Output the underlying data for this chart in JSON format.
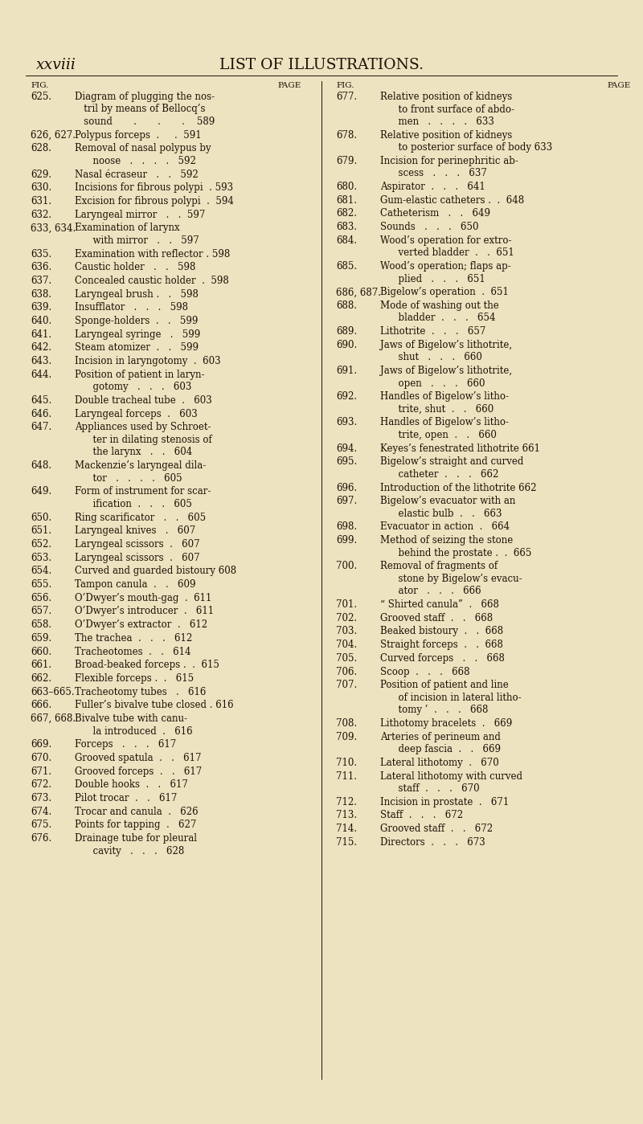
{
  "bg_color": "#ede3c0",
  "text_color": "#1a1208",
  "header_left": "xxviii",
  "header_center": "LIST OF ILLUSTRATIONS.",
  "fig_w": 8.0,
  "fig_h": 13.99,
  "dpi": 100,
  "left_entries": [
    {
      "num": "625.",
      "lines": [
        "Diagram of plugging the nos-",
        "   tril by means of Bellocq’s",
        "   sound       .       .       .    589"
      ]
    },
    {
      "num": "626, 627.",
      "lines": [
        "Polypus forceps  .     .  591"
      ]
    },
    {
      "num": "628.",
      "lines": [
        "Removal of nasal polypus by",
        "      noose   .   .   .   .   592"
      ]
    },
    {
      "num": "629.",
      "lines": [
        "Nasal écraseur   .   .   592"
      ]
    },
    {
      "num": "630.",
      "lines": [
        "Incisions for fibrous polypi  . 593"
      ]
    },
    {
      "num": "631.",
      "lines": [
        "Excision for fibrous polypi  .  594"
      ]
    },
    {
      "num": "632.",
      "lines": [
        "Laryngeal mirror   .   .  597"
      ]
    },
    {
      "num": "633, 634.",
      "lines": [
        "Examination of larynx",
        "      with mirror   .   .   597"
      ]
    },
    {
      "num": "635.",
      "lines": [
        "Examination with reflector . 598"
      ]
    },
    {
      "num": "636.",
      "lines": [
        "Caustic holder   .   .   598"
      ]
    },
    {
      "num": "637.",
      "lines": [
        "Concealed caustic holder  .  598"
      ]
    },
    {
      "num": "638.",
      "lines": [
        "Laryngeal brush .   .   598"
      ]
    },
    {
      "num": "639.",
      "lines": [
        "Insufflator   .   .   .   598"
      ]
    },
    {
      "num": "640.",
      "lines": [
        "Sponge-holders  .   .   599"
      ]
    },
    {
      "num": "641.",
      "lines": [
        "Laryngeal syringe   .   599"
      ]
    },
    {
      "num": "642.",
      "lines": [
        "Steam atomizer  .   .   599"
      ]
    },
    {
      "num": "643.",
      "lines": [
        "Incision in laryngotomy  .  603"
      ]
    },
    {
      "num": "644.",
      "lines": [
        "Position of patient in laryn-",
        "      gotomy   .   .   .   603"
      ]
    },
    {
      "num": "645.",
      "lines": [
        "Double tracheal tube  .   603"
      ]
    },
    {
      "num": "646.",
      "lines": [
        "Laryngeal forceps  .   603"
      ]
    },
    {
      "num": "647.",
      "lines": [
        "Appliances used by Schroet-",
        "      ter in dilating stenosis of",
        "      the larynx   .   .   604"
      ]
    },
    {
      "num": "648.",
      "lines": [
        "Mackenzie’s laryngeal dila-",
        "      tor   .   .   .   .   605"
      ]
    },
    {
      "num": "649.",
      "lines": [
        "Form of instrument for scar-",
        "      ification  .   .   .   605"
      ]
    },
    {
      "num": "650.",
      "lines": [
        "Ring scarificator   .   .   605"
      ]
    },
    {
      "num": "651.",
      "lines": [
        "Laryngeal knives   .   607"
      ]
    },
    {
      "num": "652.",
      "lines": [
        "Laryngeal scissors  .   607"
      ]
    },
    {
      "num": "653.",
      "lines": [
        "Laryngeal scissors  .   607"
      ]
    },
    {
      "num": "654.",
      "lines": [
        "Curved and guarded bistoury 608"
      ]
    },
    {
      "num": "655.",
      "lines": [
        "Tampon canula  .   .   609"
      ]
    },
    {
      "num": "656.",
      "lines": [
        "O’Dwyer’s mouth-gag  .  611"
      ]
    },
    {
      "num": "657.",
      "lines": [
        "O’Dwyer’s introducer  .   611"
      ]
    },
    {
      "num": "658.",
      "lines": [
        "O’Dwyer’s extractor  .   612"
      ]
    },
    {
      "num": "659.",
      "lines": [
        "The trachea  .   .   .   612"
      ]
    },
    {
      "num": "660.",
      "lines": [
        "Tracheotomes  .   .   614"
      ]
    },
    {
      "num": "661.",
      "lines": [
        "Broad-beaked forceps .  .  615"
      ]
    },
    {
      "num": "662.",
      "lines": [
        "Flexible forceps .  .   615"
      ]
    },
    {
      "num": "663–665.",
      "lines": [
        "Tracheotomy tubes   .   616"
      ]
    },
    {
      "num": "666.",
      "lines": [
        "Fuller’s bivalve tube closed . 616"
      ]
    },
    {
      "num": "667, 668.",
      "lines": [
        "Bivalve tube with canu-",
        "      la introduced  .   616"
      ]
    },
    {
      "num": "669.",
      "lines": [
        "Forceps   .   .   .   617"
      ]
    },
    {
      "num": "670.",
      "lines": [
        "Grooved spatula  .   .   617"
      ]
    },
    {
      "num": "671.",
      "lines": [
        "Grooved forceps  .   .   617"
      ]
    },
    {
      "num": "672.",
      "lines": [
        "Double hooks  .   .   617"
      ]
    },
    {
      "num": "673.",
      "lines": [
        "Pilot trocar  .   .   617"
      ]
    },
    {
      "num": "674.",
      "lines": [
        "Trocar and canula  .   626"
      ]
    },
    {
      "num": "675.",
      "lines": [
        "Points for tapping  .   627"
      ]
    },
    {
      "num": "676.",
      "lines": [
        "Drainage tube for pleural",
        "      cavity   .   .   .   628"
      ]
    }
  ],
  "right_entries": [
    {
      "num": "677.",
      "lines": [
        "Relative position of kidneys",
        "      to front surface of abdo-",
        "      men   .   .   .   .   633"
      ]
    },
    {
      "num": "678.",
      "lines": [
        "Relative position of kidneys",
        "      to posterior surface of body 633"
      ]
    },
    {
      "num": "679.",
      "lines": [
        "Incision for perinephritic ab-",
        "      scess   .   .   .   637"
      ]
    },
    {
      "num": "680.",
      "lines": [
        "Aspirator  .   .   .   641"
      ]
    },
    {
      "num": "681.",
      "lines": [
        "Gum-elastic catheters .  .  648"
      ]
    },
    {
      "num": "682.",
      "lines": [
        "Catheterism   .   .   649"
      ]
    },
    {
      "num": "683.",
      "lines": [
        "Sounds   .   .   .   650"
      ]
    },
    {
      "num": "684.",
      "lines": [
        "Wood’s operation for extro-",
        "      verted bladder  .   .  651"
      ]
    },
    {
      "num": "685.",
      "lines": [
        "Wood’s operation; flaps ap-",
        "      plied   .   .   .   651"
      ]
    },
    {
      "num": "686, 687.",
      "lines": [
        "Bigelow’s operation  .  651"
      ]
    },
    {
      "num": "688.",
      "lines": [
        "Mode of washing out the",
        "      bladder  .   .   .   654"
      ]
    },
    {
      "num": "689.",
      "lines": [
        "Lithotrite  .   .   .   657"
      ]
    },
    {
      "num": "690.",
      "lines": [
        "Jaws of Bigelow’s lithotrite,",
        "      shut   .   .   .   660"
      ]
    },
    {
      "num": "691.",
      "lines": [
        "Jaws of Bigelow’s lithotrite,",
        "      open   .   .   .   660"
      ]
    },
    {
      "num": "692.",
      "lines": [
        "Handles of Bigelow’s litho-",
        "      trite, shut  .   .   660"
      ]
    },
    {
      "num": "693.",
      "lines": [
        "Handles of Bigelow’s litho-",
        "      trite, open  .   .   660"
      ]
    },
    {
      "num": "694.",
      "lines": [
        "Keyes’s fenestrated lithotrite 661"
      ]
    },
    {
      "num": "695.",
      "lines": [
        "Bigelow’s straight and curved",
        "      catheter  .   .   .   662"
      ]
    },
    {
      "num": "696.",
      "lines": [
        "Introduction of the lithotrite 662"
      ]
    },
    {
      "num": "697.",
      "lines": [
        "Bigelow’s evacuator with an",
        "      elastic bulb  .   .   663"
      ]
    },
    {
      "num": "698.",
      "lines": [
        "Evacuator in action  .   664"
      ]
    },
    {
      "num": "699.",
      "lines": [
        "Method of seizing the stone",
        "      behind the prostate .  .  665"
      ]
    },
    {
      "num": "700.",
      "lines": [
        "Removal of fragments of",
        "      stone by Bigelow’s evacu-",
        "      ator   .   .   .   666"
      ]
    },
    {
      "num": "701.",
      "lines": [
        "“ Shirted canula”  .   668"
      ]
    },
    {
      "num": "702.",
      "lines": [
        "Grooved staff  .   .   668"
      ]
    },
    {
      "num": "703.",
      "lines": [
        "Beaked bistoury  .   .  668"
      ]
    },
    {
      "num": "704.",
      "lines": [
        "Straight forceps  .   .  668"
      ]
    },
    {
      "num": "705.",
      "lines": [
        "Curved forceps   .   .   668"
      ]
    },
    {
      "num": "706.",
      "lines": [
        "Scoop  .   .   .   668"
      ]
    },
    {
      "num": "707.",
      "lines": [
        "Position of patient and line",
        "      of incision in lateral litho-",
        "      tomy ’  .   .   .   668"
      ]
    },
    {
      "num": "708.",
      "lines": [
        "Lithotomy bracelets  .   669"
      ]
    },
    {
      "num": "709.",
      "lines": [
        "Arteries of perineum and",
        "      deep fascia  .   .   669"
      ]
    },
    {
      "num": "710.",
      "lines": [
        "Lateral lithotomy  .   670"
      ]
    },
    {
      "num": "711.",
      "lines": [
        "Lateral lithotomy with curved",
        "      staff  .   .   .   670"
      ]
    },
    {
      "num": "712.",
      "lines": [
        "Incision in prostate  .   671"
      ]
    },
    {
      "num": "713.",
      "lines": [
        "Staff  .   .   .   672"
      ]
    },
    {
      "num": "714.",
      "lines": [
        "Grooved staff  .   .   672"
      ]
    },
    {
      "num": "715.",
      "lines": [
        "Directors  .   .   .   673"
      ]
    }
  ]
}
